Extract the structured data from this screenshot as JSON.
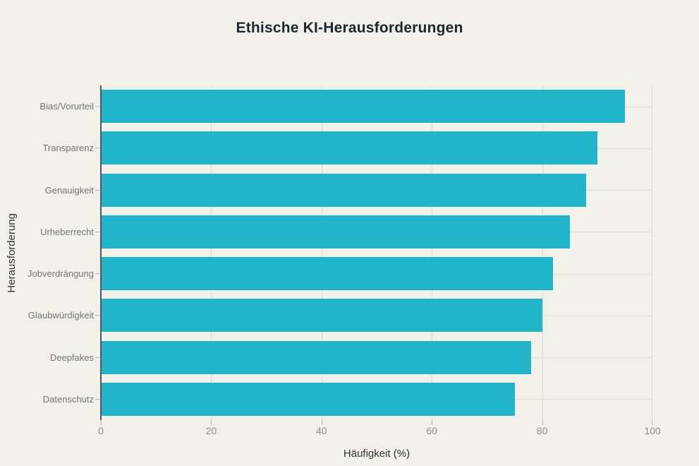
{
  "title": "Ethische KI-Herausforderungen",
  "colors": {
    "background": "#f1f0e9",
    "bar": "#20b5c9",
    "axis_line": "#54585b",
    "gridline": "#dddcd4",
    "title_text": "#1c2a30",
    "label_text": "#73777a"
  },
  "chart_data": {
    "type": "bar",
    "orientation": "horizontal",
    "title": "Ethische KI-Herausforderungen",
    "categories": [
      "Bias/Vorurteil",
      "Transparenz",
      "Genauigkeit",
      "Urheberrecht",
      "Jobverdrängung",
      "Glaubwürdigkeit",
      "Deepfakes",
      "Datenschutz"
    ],
    "values": [
      95,
      90,
      88,
      85,
      82,
      80,
      78,
      75
    ],
    "xlabel": "Häufigkeit (%)",
    "ylabel": "Herausforderung",
    "xlim": [
      0,
      100
    ],
    "xticks": [
      0,
      20,
      40,
      60,
      80,
      100
    ],
    "grid": true,
    "legend": false,
    "bar_color": "#20b5c9"
  }
}
